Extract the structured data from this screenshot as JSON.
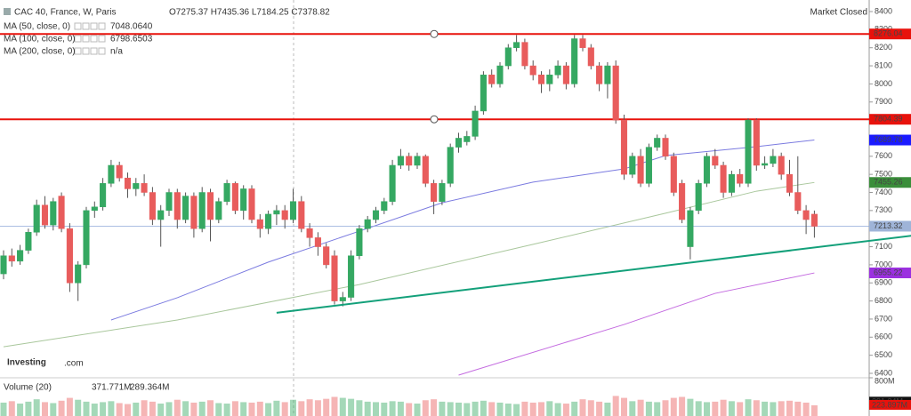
{
  "chart_data": {
    "type": "candlestick",
    "header": {
      "title": "CAC 40, France, W, Paris",
      "ohlc": "O7275.37 H7435.36 L7184.25 C7378.82",
      "status": "Market Closed",
      "logo": "Investing",
      "logo_suffix": ".com"
    },
    "indicators": [
      {
        "name": "MA (50, close, 0)",
        "value": "7048.0640",
        "color": "#3333cc"
      },
      {
        "name": "MA (100, close, 0)",
        "value": "6798.6503",
        "color": "#6a9a5a"
      },
      {
        "name": "MA (200, close, 0)",
        "value": "n/a",
        "color": "#b044d8"
      }
    ],
    "volume_header": {
      "name": "Volume (20)",
      "value": "371.771M",
      "average": "289.364M"
    },
    "up_color": "#35a862",
    "down_color": "#e85c5c",
    "ylim": [
      6400,
      8400
    ],
    "yticks": [
      6400,
      6500,
      6600,
      6700,
      6800,
      6900,
      7000,
      7100,
      7200,
      7300,
      7400,
      7500,
      7600,
      7700,
      7800,
      7900,
      8000,
      8100,
      8200,
      8300,
      8400
    ],
    "candles": [
      [
        6950,
        7080,
        6920,
        7050
      ],
      [
        7050,
        7090,
        6990,
        7020
      ],
      [
        7020,
        7110,
        7000,
        7080
      ],
      [
        7080,
        7200,
        7060,
        7180
      ],
      [
        7180,
        7360,
        7160,
        7330
      ],
      [
        7330,
        7380,
        7200,
        7220
      ],
      [
        7220,
        7370,
        7190,
        7350
      ],
      [
        7380,
        7400,
        7180,
        7200
      ],
      [
        7200,
        7230,
        6850,
        6900
      ],
      [
        6900,
        7020,
        6800,
        7000
      ],
      [
        7000,
        7320,
        6980,
        7300
      ],
      [
        7300,
        7350,
        7260,
        7320
      ],
      [
        7320,
        7480,
        7300,
        7450
      ],
      [
        7450,
        7580,
        7430,
        7550
      ],
      [
        7550,
        7570,
        7460,
        7480
      ],
      [
        7480,
        7510,
        7370,
        7420
      ],
      [
        7420,
        7480,
        7380,
        7450
      ],
      [
        7450,
        7500,
        7380,
        7400
      ],
      [
        7400,
        7430,
        7220,
        7250
      ],
      [
        7250,
        7330,
        7100,
        7300
      ],
      [
        7300,
        7420,
        7270,
        7400
      ],
      [
        7400,
        7420,
        7200,
        7250
      ],
      [
        7250,
        7400,
        7230,
        7380
      ],
      [
        7380,
        7400,
        7150,
        7200
      ],
      [
        7200,
        7430,
        7180,
        7400
      ],
      [
        7400,
        7420,
        7130,
        7250
      ],
      [
        7250,
        7370,
        7230,
        7350
      ],
      [
        7350,
        7470,
        7330,
        7450
      ],
      [
        7450,
        7460,
        7280,
        7300
      ],
      [
        7300,
        7440,
        7250,
        7420
      ],
      [
        7420,
        7440,
        7230,
        7250
      ],
      [
        7250,
        7280,
        7150,
        7200
      ],
      [
        7200,
        7300,
        7170,
        7280
      ],
      [
        7280,
        7330,
        7220,
        7300
      ],
      [
        7300,
        7330,
        7200,
        7250
      ],
      [
        7250,
        7420,
        7230,
        7350
      ],
      [
        7350,
        7380,
        7180,
        7200
      ],
      [
        7200,
        7230,
        7100,
        7150
      ],
      [
        7150,
        7180,
        7050,
        7100
      ],
      [
        7100,
        7120,
        6980,
        7000
      ],
      [
        7050,
        7080,
        6780,
        6800
      ],
      [
        6800,
        6850,
        6770,
        6820
      ],
      [
        6820,
        7080,
        6800,
        7050
      ],
      [
        7050,
        7220,
        7030,
        7200
      ],
      [
        7200,
        7270,
        7180,
        7250
      ],
      [
        7250,
        7320,
        7230,
        7300
      ],
      [
        7300,
        7370,
        7280,
        7350
      ],
      [
        7350,
        7580,
        7330,
        7550
      ],
      [
        7550,
        7640,
        7530,
        7600
      ],
      [
        7600,
        7620,
        7520,
        7550
      ],
      [
        7550,
        7620,
        7530,
        7600
      ],
      [
        7600,
        7610,
        7430,
        7450
      ],
      [
        7450,
        7470,
        7280,
        7350
      ],
      [
        7350,
        7470,
        7330,
        7450
      ],
      [
        7450,
        7670,
        7430,
        7650
      ],
      [
        7650,
        7730,
        7620,
        7700
      ],
      [
        7680,
        7740,
        7660,
        7710
      ],
      [
        7710,
        7880,
        7690,
        7850
      ],
      [
        7850,
        8070,
        7830,
        8050
      ],
      [
        8050,
        8080,
        7980,
        8000
      ],
      [
        8000,
        8120,
        7980,
        8100
      ],
      [
        8100,
        8220,
        8080,
        8200
      ],
      [
        8200,
        8270,
        8180,
        8230
      ],
      [
        8230,
        8250,
        8080,
        8100
      ],
      [
        8100,
        8130,
        8020,
        8050
      ],
      [
        8050,
        8070,
        7950,
        8000
      ],
      [
        8000,
        8080,
        7960,
        8050
      ],
      [
        8050,
        8130,
        8030,
        8100
      ],
      [
        8100,
        8120,
        7970,
        8000
      ],
      [
        8000,
        8270,
        7980,
        8250
      ],
      [
        8250,
        8270,
        8180,
        8200
      ],
      [
        8200,
        8220,
        8080,
        8100
      ],
      [
        8100,
        8120,
        7960,
        8000
      ],
      [
        8000,
        8120,
        7920,
        8100
      ],
      [
        8100,
        8130,
        7780,
        7800
      ],
      [
        7800,
        7830,
        7470,
        7500
      ],
      [
        7500,
        7620,
        7480,
        7600
      ],
      [
        7600,
        7640,
        7430,
        7450
      ],
      [
        7450,
        7670,
        7430,
        7650
      ],
      [
        7650,
        7720,
        7630,
        7700
      ],
      [
        7700,
        7720,
        7580,
        7600
      ],
      [
        7600,
        7620,
        7380,
        7400
      ],
      [
        7450,
        7470,
        7230,
        7250
      ],
      [
        7100,
        7320,
        7030,
        7300
      ],
      [
        7300,
        7470,
        7280,
        7450
      ],
      [
        7450,
        7620,
        7430,
        7600
      ],
      [
        7600,
        7640,
        7530,
        7550
      ],
      [
        7550,
        7570,
        7370,
        7400
      ],
      [
        7400,
        7520,
        7380,
        7500
      ],
      [
        7500,
        7530,
        7430,
        7450
      ],
      [
        7450,
        7810,
        7430,
        7800
      ],
      [
        7800,
        7810,
        7520,
        7550
      ],
      [
        7550,
        7600,
        7530,
        7560
      ],
      [
        7560,
        7640,
        7540,
        7600
      ],
      [
        7600,
        7620,
        7470,
        7500
      ],
      [
        7500,
        7580,
        7380,
        7400
      ],
      [
        7400,
        7600,
        7280,
        7300
      ],
      [
        7300,
        7330,
        7170,
        7250
      ],
      [
        7280,
        7300,
        7150,
        7213
      ]
    ],
    "volumes": [
      280,
      310,
      260,
      300,
      350,
      290,
      270,
      320,
      380,
      340,
      300,
      260,
      290,
      310,
      270,
      250,
      280,
      330,
      300,
      260,
      290,
      340,
      310,
      280,
      300,
      330,
      270,
      260,
      310,
      290,
      280,
      300,
      270,
      320,
      290,
      340,
      310,
      350,
      330,
      360,
      400,
      380,
      360,
      330,
      300,
      290,
      280,
      310,
      300,
      270,
      260,
      330,
      350,
      300,
      290,
      280,
      270,
      300,
      320,
      290,
      280,
      260,
      250,
      300,
      280,
      290,
      310,
      270,
      260,
      300,
      350,
      330,
      300,
      280,
      420,
      380,
      310,
      340,
      300,
      290,
      330,
      380,
      400,
      360,
      310,
      290,
      300,
      340,
      310,
      290,
      350,
      330,
      300,
      290,
      310,
      320,
      300,
      280,
      224
    ],
    "y2lim": [
      0,
      800
    ],
    "y2ticks": [
      {
        "value": 800,
        "label": "800M"
      }
    ],
    "volume_labels": [
      {
        "value": 291.24,
        "label": "291.24M",
        "color": "#111111"
      },
      {
        "value": 223.897,
        "label": "223.897M",
        "color": "#e8120c"
      }
    ],
    "ma": [
      {
        "color": "#7b7be0",
        "x": [
          13,
          21,
          32,
          43,
          53,
          64,
          75,
          80,
          91,
          98
        ],
        "values": [
          6695,
          6818,
          7015,
          7186,
          7343,
          7457,
          7530,
          7604,
          7653,
          7690
        ]
      },
      {
        "color": "#a9c79c",
        "x": [
          0,
          21,
          43,
          64,
          80,
          91,
          98
        ],
        "values": [
          6547,
          6695,
          6891,
          7113,
          7285,
          7407,
          7455
        ]
      },
      {
        "color": "#c46be0",
        "x": [
          55,
          75,
          86,
          98
        ],
        "values": [
          6390,
          6670,
          6842,
          6955
        ]
      }
    ],
    "trendline": {
      "color": "#13a07a",
      "x": [
        33,
        110
      ],
      "values": [
        6735,
        7162
      ]
    },
    "price_labels": [
      {
        "value": 8276.04,
        "color": "#e8120c",
        "line": "thick"
      },
      {
        "value": 7804.39,
        "color": "#e8120c",
        "line": "thick"
      },
      {
        "value": 7689.78,
        "color": "#1a1aff"
      },
      {
        "value": 7455.26,
        "color": "#3a8e3a"
      },
      {
        "value": 7213.32,
        "color": "#9fb4d8",
        "line": "thin"
      },
      {
        "value": 6955.22,
        "color": "#9b30e0"
      }
    ]
  }
}
